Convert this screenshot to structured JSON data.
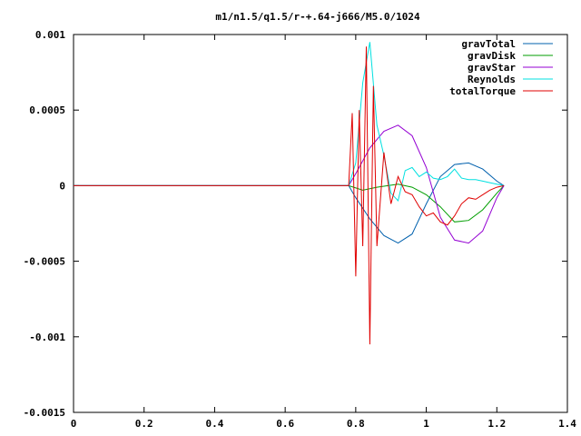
{
  "chart_data": {
    "type": "line",
    "title": "m1/n1.5/q1.5/r-+.64-j666/M5.0/1024",
    "xlabel": "",
    "ylabel": "",
    "xlim": [
      0,
      1.4
    ],
    "ylim": [
      -0.0015,
      0.001
    ],
    "x_ticks": [
      "0",
      "0.2",
      "0.4",
      "0.6",
      "0.8",
      "1",
      "1.2",
      "1.4"
    ],
    "y_ticks": [
      "0.001",
      "0.0005",
      "0",
      "-0.0005",
      "-0.001",
      "-0.0015"
    ],
    "legend_position": "top-right",
    "grid": false,
    "series": [
      {
        "name": "gravTotal",
        "color": "#0060ad",
        "x": [
          0,
          0.78,
          0.8,
          0.84,
          0.88,
          0.92,
          0.96,
          1.0,
          1.04,
          1.08,
          1.12,
          1.16,
          1.2,
          1.22
        ],
        "y": [
          0,
          0,
          -8e-05,
          -0.00022,
          -0.00033,
          -0.00038,
          -0.00032,
          -0.00012,
          6e-05,
          0.00014,
          0.00015,
          0.00011,
          3e-05,
          0
        ]
      },
      {
        "name": "gravDisk",
        "color": "#009e00",
        "x": [
          0,
          0.78,
          0.82,
          0.86,
          0.92,
          0.96,
          1.0,
          1.04,
          1.08,
          1.12,
          1.16,
          1.2,
          1.22
        ],
        "y": [
          0,
          0,
          -3e-05,
          -1e-05,
          1e-05,
          -1e-05,
          -6e-05,
          -0.00014,
          -0.00024,
          -0.00023,
          -0.00016,
          -5e-05,
          0
        ]
      },
      {
        "name": "gravStar",
        "color": "#9400d3",
        "x": [
          0,
          0.78,
          0.8,
          0.84,
          0.88,
          0.92,
          0.96,
          1.0,
          1.04,
          1.08,
          1.12,
          1.16,
          1.2,
          1.22
        ],
        "y": [
          0,
          0,
          8e-05,
          0.00025,
          0.00036,
          0.0004,
          0.00033,
          0.00012,
          -0.00021,
          -0.00036,
          -0.00038,
          -0.0003,
          -8e-05,
          0
        ]
      },
      {
        "name": "Reynolds",
        "color": "#00e0e0",
        "x": [
          0,
          0.78,
          0.8,
          0.82,
          0.84,
          0.86,
          0.88,
          0.9,
          0.92,
          0.94,
          0.96,
          0.98,
          1.0,
          1.02,
          1.04,
          1.06,
          1.08,
          1.1,
          1.12,
          1.14,
          1.16,
          1.18,
          1.2,
          1.22
        ],
        "y": [
          0,
          0,
          0.00015,
          0.00068,
          0.00095,
          0.0004,
          0.0002,
          -5e-05,
          -0.0001,
          0.0001,
          0.00012,
          6e-05,
          9e-05,
          5e-05,
          4e-05,
          6e-05,
          0.00011,
          5e-05,
          4e-05,
          4e-05,
          3e-05,
          2e-05,
          1e-05,
          0
        ]
      },
      {
        "name": "totalTorque",
        "color": "#e00000",
        "x": [
          0,
          0.78,
          0.79,
          0.8,
          0.81,
          0.82,
          0.83,
          0.84,
          0.85,
          0.86,
          0.88,
          0.9,
          0.92,
          0.94,
          0.96,
          0.98,
          1.0,
          1.02,
          1.04,
          1.06,
          1.08,
          1.1,
          1.12,
          1.14,
          1.16,
          1.18,
          1.2,
          1.22
        ],
        "y": [
          0,
          0,
          0.00048,
          -0.0006,
          0.0005,
          -0.0004,
          0.00092,
          -0.00105,
          0.00066,
          -0.0004,
          0.00022,
          -0.00012,
          6e-05,
          -4e-05,
          -6e-05,
          -0.00014,
          -0.0002,
          -0.00018,
          -0.00024,
          -0.00026,
          -0.0002,
          -0.00012,
          -8e-05,
          -9e-05,
          -6e-05,
          -3e-05,
          -1e-05,
          0
        ]
      }
    ]
  }
}
